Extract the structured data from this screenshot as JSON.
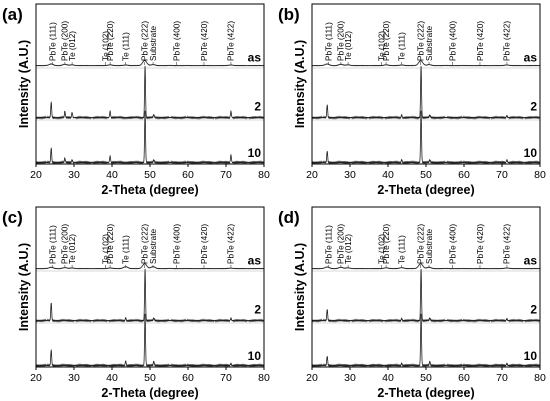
{
  "chart_data": [
    {
      "type": "line",
      "panel_label": "(a)",
      "xlabel": "2-Theta (degree)",
      "ylabel": "Intensity (A.U.)",
      "xlim": [
        20,
        80
      ],
      "xticks": [
        20,
        30,
        40,
        50,
        60,
        70,
        80
      ],
      "peak_labels": [
        {
          "text": "PbTe (111)",
          "x": 24.4
        },
        {
          "text": "PbTe (200)",
          "x": 27.6
        },
        {
          "text": "Te (012)",
          "x": 29.5
        },
        {
          "text": "Te (102)",
          "x": 38.3
        },
        {
          "text": "PbTe (220)",
          "x": 39.5
        },
        {
          "text": "Te (111)",
          "x": 43.6
        },
        {
          "text": "PbTe (222)",
          "x": 48.6
        },
        {
          "text": "Substrate",
          "x": 50.8
        },
        {
          "text": "PbTe (400)",
          "x": 57.0
        },
        {
          "text": "PbTe (420)",
          "x": 64.2
        },
        {
          "text": "PbTe (422)",
          "x": 71.3
        }
      ],
      "series": [
        {
          "name": "as",
          "peaks": [
            {
              "x": 24.0,
              "h": 0.1
            },
            {
              "x": 27.6,
              "h": 0.08
            },
            {
              "x": 29.5,
              "h": 0.05
            },
            {
              "x": 39.5,
              "h": 0.05
            },
            {
              "x": 43.6,
              "h": 0.04
            },
            {
              "x": 48.6,
              "h": 0.32
            },
            {
              "x": 50.8,
              "h": 0.06
            },
            {
              "x": 71.3,
              "h": 0.04
            }
          ]
        },
        {
          "name": "2",
          "peaks": [
            {
              "x": 24.0,
              "h": 0.3
            },
            {
              "x": 27.6,
              "h": 0.12
            },
            {
              "x": 29.5,
              "h": 0.1
            },
            {
              "x": 39.5,
              "h": 0.12
            },
            {
              "x": 48.7,
              "h": 1.0
            },
            {
              "x": 51.0,
              "h": 0.06
            },
            {
              "x": 71.3,
              "h": 0.12
            }
          ]
        },
        {
          "name": "10",
          "peaks": [
            {
              "x": 24.0,
              "h": 0.28
            },
            {
              "x": 27.6,
              "h": 0.08
            },
            {
              "x": 29.5,
              "h": 0.05
            },
            {
              "x": 39.5,
              "h": 0.12
            },
            {
              "x": 48.7,
              "h": 1.0
            },
            {
              "x": 51.0,
              "h": 0.05
            },
            {
              "x": 71.3,
              "h": 0.14
            }
          ]
        }
      ]
    },
    {
      "type": "line",
      "panel_label": "(b)",
      "xlabel": "2-Theta (degree)",
      "ylabel": "Intensity (A.U.)",
      "xlim": [
        20,
        80
      ],
      "xticks": [
        20,
        30,
        40,
        50,
        60,
        70,
        80
      ],
      "peak_labels": [
        {
          "text": "PbTe (111)",
          "x": 24.4
        },
        {
          "text": "PbTe (200)",
          "x": 27.6
        },
        {
          "text": "Te (012)",
          "x": 29.5
        },
        {
          "text": "Te (102)",
          "x": 38.3
        },
        {
          "text": "PbTe (220)",
          "x": 39.5
        },
        {
          "text": "Te (111)",
          "x": 43.6
        },
        {
          "text": "PbTe (222)",
          "x": 48.6
        },
        {
          "text": "Substrate",
          "x": 50.8
        },
        {
          "text": "PbTe (400)",
          "x": 57.0
        },
        {
          "text": "PbTe (420)",
          "x": 64.2
        },
        {
          "text": "PbTe (422)",
          "x": 71.3
        }
      ],
      "series": [
        {
          "name": "as",
          "peaks": [
            {
              "x": 24.0,
              "h": 0.1
            },
            {
              "x": 27.6,
              "h": 0.08
            },
            {
              "x": 29.5,
              "h": 0.05
            },
            {
              "x": 39.5,
              "h": 0.05
            },
            {
              "x": 43.6,
              "h": 0.04
            },
            {
              "x": 48.6,
              "h": 0.3
            },
            {
              "x": 50.8,
              "h": 0.06
            },
            {
              "x": 71.3,
              "h": 0.04
            }
          ]
        },
        {
          "name": "2",
          "peaks": [
            {
              "x": 24.0,
              "h": 0.25
            },
            {
              "x": 43.6,
              "h": 0.05
            },
            {
              "x": 48.7,
              "h": 1.0
            },
            {
              "x": 51.0,
              "h": 0.05
            },
            {
              "x": 71.3,
              "h": 0.04
            }
          ]
        },
        {
          "name": "10",
          "peaks": [
            {
              "x": 24.0,
              "h": 0.22
            },
            {
              "x": 43.6,
              "h": 0.05
            },
            {
              "x": 48.7,
              "h": 1.0
            },
            {
              "x": 51.0,
              "h": 0.05
            },
            {
              "x": 71.3,
              "h": 0.05
            }
          ]
        }
      ]
    },
    {
      "type": "line",
      "panel_label": "(c)",
      "xlabel": "2-Theta (degree)",
      "ylabel": "Intensity (A.U.)",
      "xlim": [
        20,
        80
      ],
      "xticks": [
        20,
        30,
        40,
        50,
        60,
        70,
        80
      ],
      "peak_labels": [
        {
          "text": "PbTe (111)",
          "x": 24.4
        },
        {
          "text": "PbTe (200)",
          "x": 27.6
        },
        {
          "text": "Te (012)",
          "x": 29.5
        },
        {
          "text": "Te (102)",
          "x": 38.3
        },
        {
          "text": "PbTe (220)",
          "x": 39.5
        },
        {
          "text": "Te (111)",
          "x": 43.6
        },
        {
          "text": "PbTe (222)",
          "x": 48.6
        },
        {
          "text": "Substrate",
          "x": 50.8
        },
        {
          "text": "PbTe (400)",
          "x": 57.0
        },
        {
          "text": "PbTe (420)",
          "x": 64.2
        },
        {
          "text": "PbTe (422)",
          "x": 71.3
        }
      ],
      "series": [
        {
          "name": "as",
          "peaks": [
            {
              "x": 24.0,
              "h": 0.08
            },
            {
              "x": 27.6,
              "h": 0.06
            },
            {
              "x": 29.5,
              "h": 0.04
            },
            {
              "x": 39.5,
              "h": 0.04
            },
            {
              "x": 43.6,
              "h": 0.12
            },
            {
              "x": 48.6,
              "h": 0.3
            },
            {
              "x": 50.8,
              "h": 0.12
            },
            {
              "x": 71.3,
              "h": 0.03
            }
          ]
        },
        {
          "name": "2",
          "peaks": [
            {
              "x": 24.0,
              "h": 0.35
            },
            {
              "x": 43.6,
              "h": 0.05
            },
            {
              "x": 48.7,
              "h": 1.0
            },
            {
              "x": 51.0,
              "h": 0.05
            },
            {
              "x": 71.3,
              "h": 0.05
            }
          ]
        },
        {
          "name": "10",
          "peaks": [
            {
              "x": 24.0,
              "h": 0.3
            },
            {
              "x": 43.6,
              "h": 0.08
            },
            {
              "x": 48.7,
              "h": 1.0
            },
            {
              "x": 51.0,
              "h": 0.08
            },
            {
              "x": 71.3,
              "h": 0.04
            }
          ]
        }
      ]
    },
    {
      "type": "line",
      "panel_label": "(d)",
      "xlabel": "2-Theta (degree)",
      "ylabel": "Intensity (A.U.)",
      "xlim": [
        20,
        80
      ],
      "xticks": [
        20,
        30,
        40,
        50,
        60,
        70,
        80
      ],
      "peak_labels": [
        {
          "text": "PbTe (111)",
          "x": 24.4
        },
        {
          "text": "PbTe (200)",
          "x": 27.6
        },
        {
          "text": "Te (012)",
          "x": 29.5
        },
        {
          "text": "Te (102)",
          "x": 38.3
        },
        {
          "text": "PbTe (220)",
          "x": 39.5
        },
        {
          "text": "Te (111)",
          "x": 43.6
        },
        {
          "text": "PbTe (222)",
          "x": 48.6
        },
        {
          "text": "Substrate",
          "x": 50.8
        },
        {
          "text": "PbTe (400)",
          "x": 57.0
        },
        {
          "text": "PbTe (420)",
          "x": 64.2
        },
        {
          "text": "PbTe (422)",
          "x": 71.3
        }
      ],
      "series": [
        {
          "name": "as",
          "peaks": [
            {
              "x": 24.0,
              "h": 0.1
            },
            {
              "x": 27.6,
              "h": 0.08
            },
            {
              "x": 29.5,
              "h": 0.05
            },
            {
              "x": 39.5,
              "h": 0.05
            },
            {
              "x": 43.6,
              "h": 0.06
            },
            {
              "x": 48.6,
              "h": 0.3
            },
            {
              "x": 50.8,
              "h": 0.08
            },
            {
              "x": 71.3,
              "h": 0.04
            }
          ]
        },
        {
          "name": "2",
          "peaks": [
            {
              "x": 24.0,
              "h": 0.22
            },
            {
              "x": 43.6,
              "h": 0.04
            },
            {
              "x": 48.7,
              "h": 1.0
            },
            {
              "x": 51.0,
              "h": 0.05
            },
            {
              "x": 71.3,
              "h": 0.04
            }
          ]
        },
        {
          "name": "10",
          "peaks": [
            {
              "x": 24.0,
              "h": 0.18
            },
            {
              "x": 43.6,
              "h": 0.04
            },
            {
              "x": 48.7,
              "h": 1.0
            },
            {
              "x": 51.0,
              "h": 0.08
            },
            {
              "x": 71.3,
              "h": 0.04
            }
          ]
        }
      ]
    }
  ]
}
